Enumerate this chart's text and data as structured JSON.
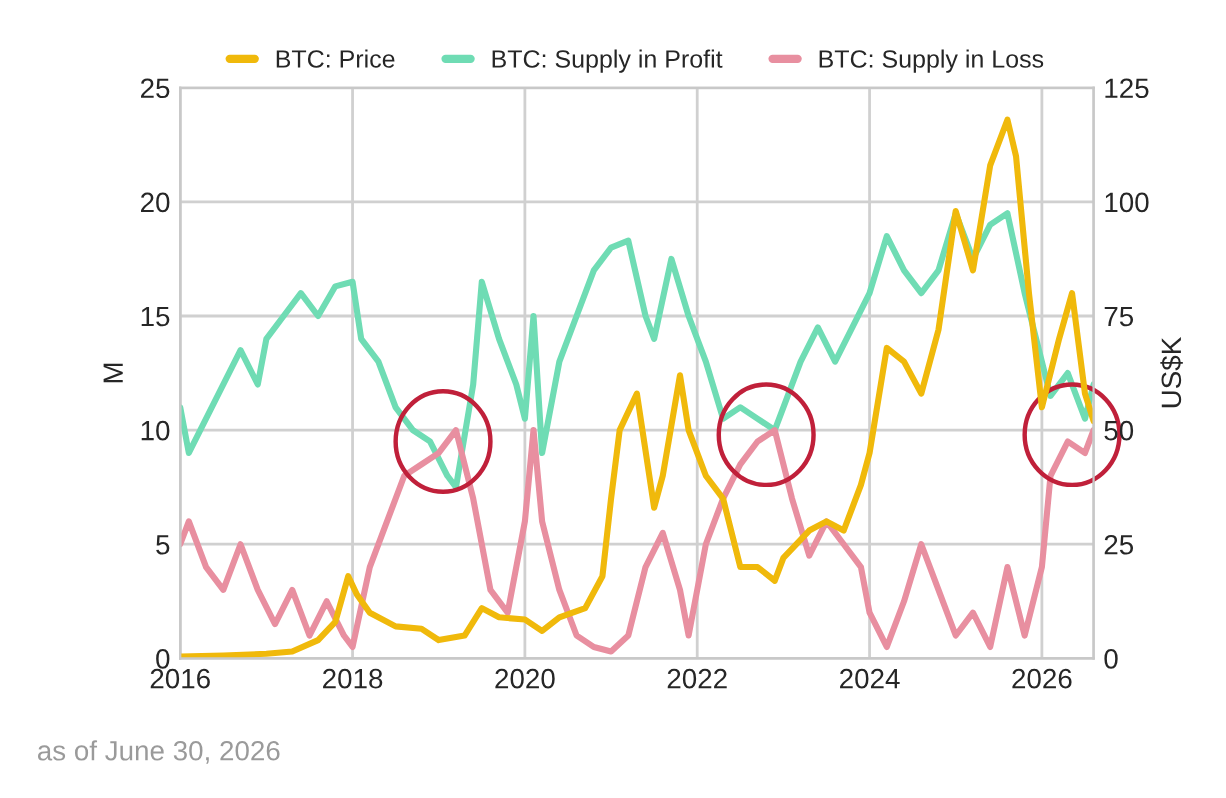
{
  "chart_data": {
    "type": "line",
    "series": [
      {
        "name": "BTC: Price",
        "color": "#f0b90b",
        "axis": "y2",
        "x": [
          2016.0,
          2016.5,
          2017.0,
          2017.3,
          2017.6,
          2017.8,
          2017.95,
          2018.05,
          2018.2,
          2018.5,
          2018.8,
          2019.0,
          2019.3,
          2019.5,
          2019.7,
          2020.0,
          2020.2,
          2020.4,
          2020.7,
          2020.9,
          2021.0,
          2021.1,
          2021.3,
          2021.5,
          2021.6,
          2021.8,
          2021.9,
          2022.1,
          2022.3,
          2022.5,
          2022.7,
          2022.9,
          2023.0,
          2023.3,
          2023.5,
          2023.7,
          2023.9,
          2024.0,
          2024.2,
          2024.4,
          2024.6,
          2024.8,
          2025.0,
          2025.2,
          2025.4,
          2025.6,
          2025.7,
          2025.85,
          2026.0,
          2026.2,
          2026.35,
          2026.5,
          2026.6
        ],
        "values": [
          0.4,
          0.6,
          1,
          1.5,
          4,
          8,
          18,
          14,
          10,
          7,
          6.5,
          4,
          5,
          11,
          9,
          8.5,
          6,
          9,
          11,
          18,
          35,
          50,
          58,
          33,
          40,
          62,
          50,
          40,
          35,
          20,
          20,
          17,
          22,
          28,
          30,
          28,
          38,
          45,
          68,
          65,
          58,
          72,
          98,
          85,
          108,
          118,
          110,
          80,
          55,
          70,
          80,
          58,
          52
        ]
      },
      {
        "name": "BTC: Supply in Profit",
        "color": "#6fdcb4",
        "x": [
          2016.0,
          2016.1,
          2016.3,
          2016.5,
          2016.7,
          2016.9,
          2017.0,
          2017.2,
          2017.4,
          2017.6,
          2017.8,
          2018.0,
          2018.1,
          2018.3,
          2018.5,
          2018.7,
          2018.9,
          2019.1,
          2019.2,
          2019.4,
          2019.5,
          2019.7,
          2019.9,
          2020.0,
          2020.1,
          2020.2,
          2020.4,
          2020.6,
          2020.8,
          2021.0,
          2021.2,
          2021.4,
          2021.5,
          2021.7,
          2021.9,
          2022.1,
          2022.3,
          2022.5,
          2022.7,
          2022.9,
          2023.0,
          2023.2,
          2023.4,
          2023.6,
          2023.8,
          2024.0,
          2024.2,
          2024.4,
          2024.6,
          2024.8,
          2025.0,
          2025.2,
          2025.4,
          2025.6,
          2025.8,
          2026.0,
          2026.1,
          2026.3,
          2026.5,
          2026.6
        ],
        "values": [
          11,
          9,
          10.5,
          12,
          13.5,
          12,
          14,
          15,
          16,
          15,
          16.3,
          16.5,
          14,
          13,
          11,
          10,
          9.5,
          8,
          7.5,
          12,
          16.5,
          14,
          12,
          10.5,
          15,
          9,
          13,
          15,
          17,
          18,
          18.3,
          15,
          14,
          17.5,
          15,
          13,
          10.5,
          11,
          10.5,
          10,
          11,
          13,
          14.5,
          13,
          14.5,
          16,
          18.5,
          17,
          16,
          17,
          19.5,
          17.5,
          19,
          19.5,
          16,
          13,
          11.5,
          12.5,
          10.5,
          12
        ]
      },
      {
        "name": "BTC: Supply in Loss",
        "color": "#e88fa0",
        "x": [
          2016.0,
          2016.1,
          2016.3,
          2016.5,
          2016.7,
          2016.9,
          2017.1,
          2017.3,
          2017.5,
          2017.7,
          2017.9,
          2018.0,
          2018.2,
          2018.4,
          2018.6,
          2018.8,
          2019.0,
          2019.2,
          2019.4,
          2019.6,
          2019.8,
          2020.0,
          2020.1,
          2020.2,
          2020.4,
          2020.6,
          2020.8,
          2021.0,
          2021.2,
          2021.4,
          2021.6,
          2021.8,
          2021.9,
          2022.1,
          2022.3,
          2022.5,
          2022.7,
          2022.9,
          2023.1,
          2023.3,
          2023.5,
          2023.7,
          2023.9,
          2024.0,
          2024.2,
          2024.4,
          2024.6,
          2024.8,
          2025.0,
          2025.2,
          2025.4,
          2025.6,
          2025.8,
          2026.0,
          2026.1,
          2026.3,
          2026.5,
          2026.6
        ],
        "values": [
          5,
          6,
          4,
          3,
          5,
          3,
          1.5,
          3,
          1,
          2.5,
          1,
          0.5,
          4,
          6,
          8,
          8.5,
          9,
          10,
          7,
          3,
          2,
          6,
          10,
          6,
          3,
          1,
          0.5,
          0.3,
          1,
          4,
          5.5,
          3,
          1,
          5,
          7,
          8.5,
          9.5,
          10,
          7,
          4.5,
          6,
          5,
          4,
          2,
          0.5,
          2.5,
          5,
          3,
          1,
          2,
          0.5,
          4,
          1,
          4,
          8,
          9.5,
          9,
          10
        ]
      }
    ],
    "xlim": [
      2016,
      2026.6
    ],
    "xticks": [
      2016,
      2018,
      2020,
      2022,
      2024,
      2026
    ],
    "ylim": [
      0,
      25
    ],
    "yticks": [
      0,
      5,
      10,
      15,
      20,
      25
    ],
    "y2lim": [
      0,
      125
    ],
    "y2ticks": [
      0,
      25,
      50,
      75,
      100,
      125
    ],
    "ylabel": "M",
    "y2label": "US$K",
    "grid": true,
    "legend": "top",
    "annotations": [
      "as of June 30, 2026"
    ]
  }
}
